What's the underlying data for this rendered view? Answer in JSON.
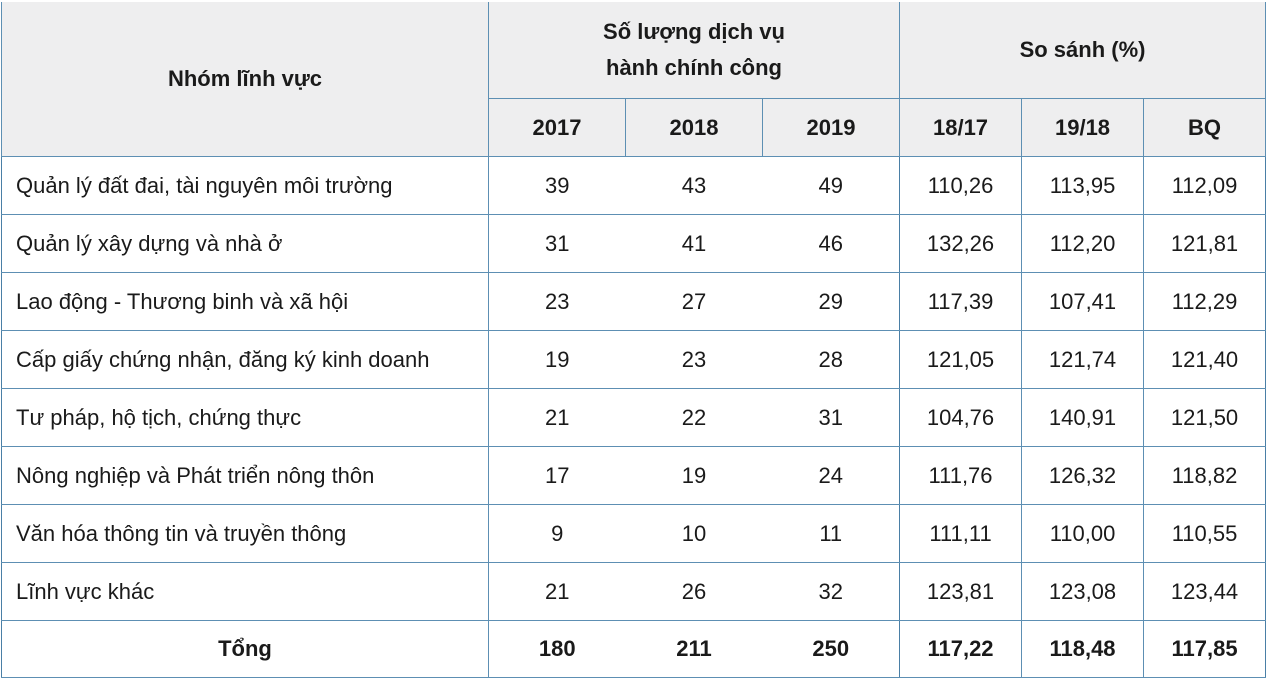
{
  "header": {
    "group_col": "Nhóm lĩnh vực",
    "count_group_line1": "Số lượng dịch vụ",
    "count_group_line2": "hành chính công",
    "compare_group": "So sánh (%)",
    "years": [
      "2017",
      "2018",
      "2019"
    ],
    "ratios": [
      "18/17",
      "19/18",
      "BQ"
    ]
  },
  "rows": [
    {
      "name": "Quản lý đất đai, tài nguyên môi trường",
      "y2017": "39",
      "y2018": "43",
      "y2019": "49",
      "r1817": "110,26",
      "r1918": "113,95",
      "bq": "112,09"
    },
    {
      "name": "Quản lý xây dựng và nhà ở",
      "y2017": "31",
      "y2018": "41",
      "y2019": "46",
      "r1817": "132,26",
      "r1918": "112,20",
      "bq": "121,81"
    },
    {
      "name": "Lao động - Thương binh và xã hội",
      "y2017": "23",
      "y2018": "27",
      "y2019": "29",
      "r1817": "117,39",
      "r1918": "107,41",
      "bq": "112,29"
    },
    {
      "name": "Cấp giấy chứng nhận, đăng ký kinh doanh",
      "y2017": "19",
      "y2018": "23",
      "y2019": "28",
      "r1817": "121,05",
      "r1918": "121,74",
      "bq": "121,40"
    },
    {
      "name": "Tư pháp, hộ tịch, chứng thực",
      "y2017": "21",
      "y2018": "22",
      "y2019": "31",
      "r1817": "104,76",
      "r1918": "140,91",
      "bq": "121,50"
    },
    {
      "name": "Nông nghiệp và Phát triển nông thôn",
      "y2017": "17",
      "y2018": "19",
      "y2019": "24",
      "r1817": "111,76",
      "r1918": "126,32",
      "bq": "118,82"
    },
    {
      "name": "Văn hóa thông tin và truyền thông",
      "y2017": "9",
      "y2018": "10",
      "y2019": "11",
      "r1817": "111,11",
      "r1918": "110,00",
      "bq": "110,55"
    },
    {
      "name": "Lĩnh vực khác",
      "y2017": "21",
      "y2018": "26",
      "y2019": "32",
      "r1817": "123,81",
      "r1918": "123,08",
      "bq": "123,44"
    }
  ],
  "total": {
    "name": "Tổng",
    "y2017": "180",
    "y2018": "211",
    "y2019": "250",
    "r1817": "117,22",
    "r1918": "118,48",
    "bq": "117,85"
  }
}
